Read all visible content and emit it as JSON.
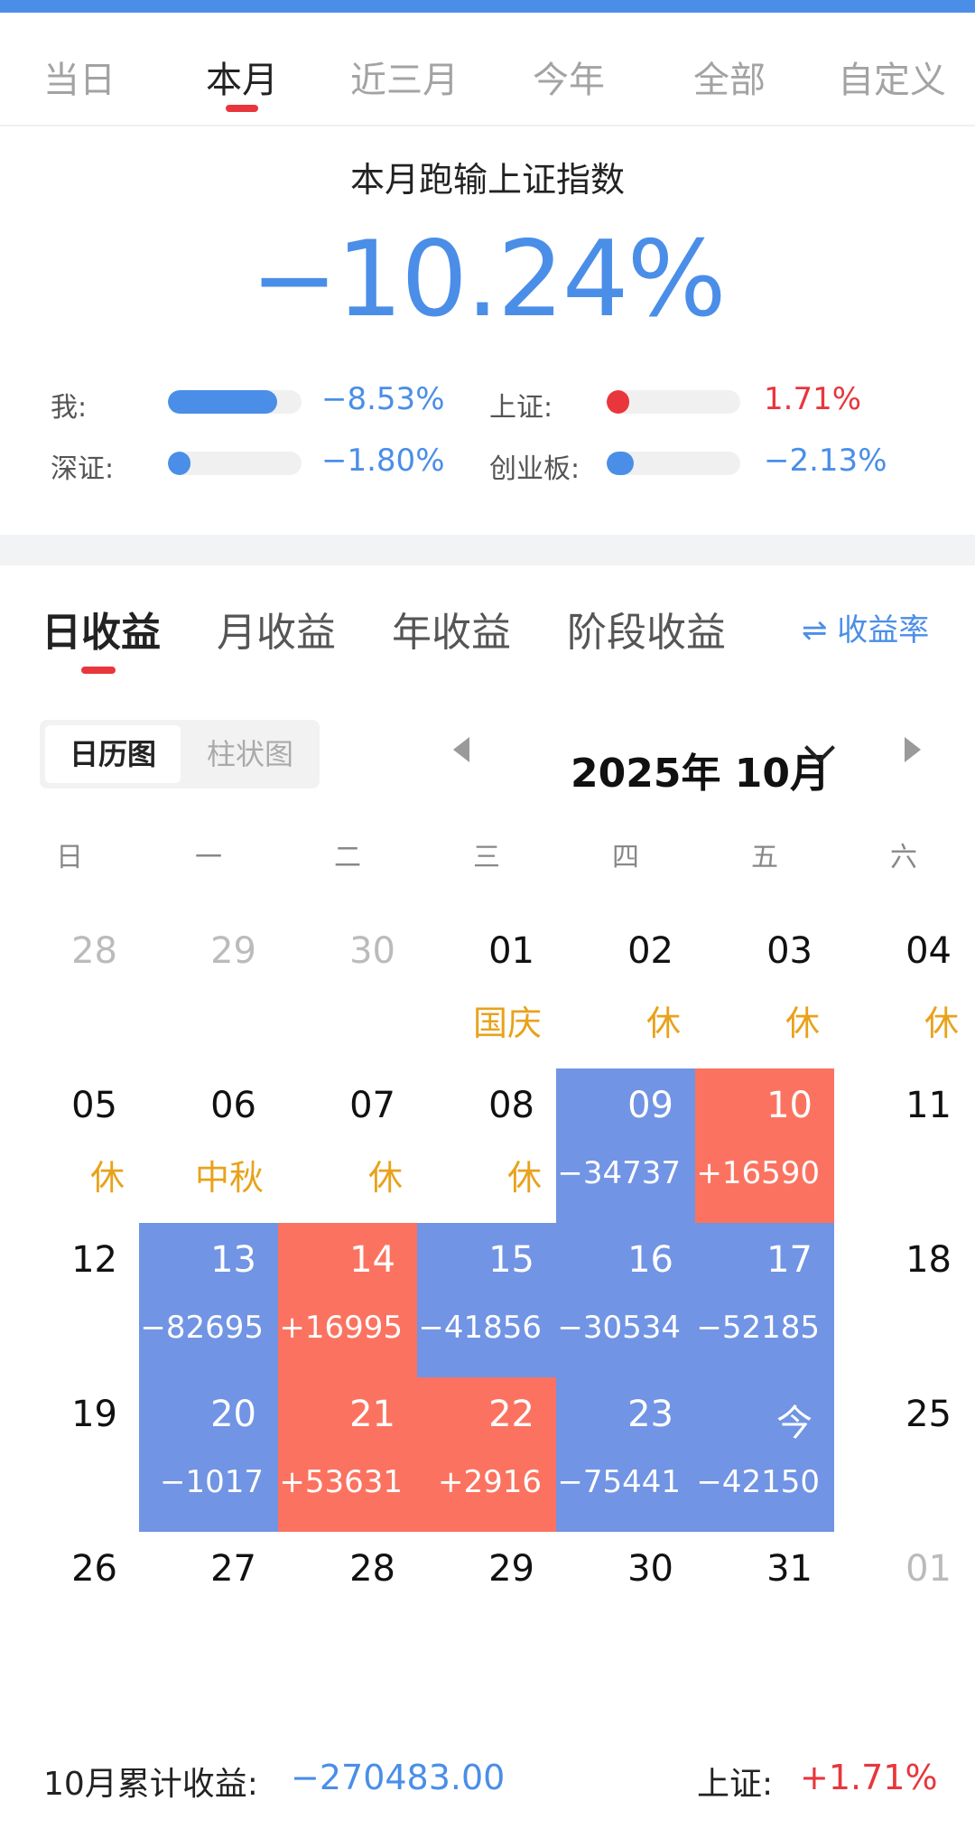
{
  "colors": {
    "accent_blue": "#4a8ee8",
    "accent_red": "#e8363c",
    "loss_cell": "#7194e4",
    "gain_cell": "#fb7360",
    "holiday": "#e8a21b"
  },
  "period_tabs": [
    {
      "label": "当日",
      "active": false
    },
    {
      "label": "本月",
      "active": true
    },
    {
      "label": "近三月",
      "active": false
    },
    {
      "label": "今年",
      "active": false
    },
    {
      "label": "全部",
      "active": false
    },
    {
      "label": "自定义",
      "active": false
    }
  ],
  "summary": {
    "title": "本月跑输上证指数",
    "value": "−10.24%",
    "comparisons": [
      {
        "label": "我:",
        "value": "−8.53%",
        "fill_fraction": 0.82,
        "color": "#4a8ee8"
      },
      {
        "label": "上证:",
        "value": "1.71%",
        "fill_fraction": 0.17,
        "color": "#e8363c"
      },
      {
        "label": "深证:",
        "value": "−1.80%",
        "fill_fraction": 0.17,
        "color": "#4a8ee8"
      },
      {
        "label": "创业板:",
        "value": "−2.13%",
        "fill_fraction": 0.2,
        "color": "#4a8ee8"
      }
    ]
  },
  "income_tabs": [
    {
      "label": "日收益",
      "active": true
    },
    {
      "label": "月收益",
      "active": false
    },
    {
      "label": "年收益",
      "active": false
    },
    {
      "label": "阶段收益",
      "active": false
    }
  ],
  "rate_toggle": {
    "icon": "swap-arrows-icon",
    "label": "⇌ 收益率"
  },
  "view_toggle": {
    "calendar_label": "日历图",
    "bar_label": "柱状图",
    "active": "calendar"
  },
  "month_nav": {
    "title": "2025年 10月"
  },
  "weekdays": [
    "日",
    "一",
    "二",
    "三",
    "四",
    "五",
    "六"
  ],
  "calendar_weeks": [
    [
      {
        "day": "28",
        "sub": "",
        "state": "other"
      },
      {
        "day": "29",
        "sub": "",
        "state": "other"
      },
      {
        "day": "30",
        "sub": "",
        "state": "other"
      },
      {
        "day": "01",
        "sub": "国庆",
        "state": "holiday"
      },
      {
        "day": "02",
        "sub": "休",
        "state": "holiday"
      },
      {
        "day": "03",
        "sub": "休",
        "state": "holiday"
      },
      {
        "day": "04",
        "sub": "休",
        "state": "holiday"
      }
    ],
    [
      {
        "day": "05",
        "sub": "休",
        "state": "holiday"
      },
      {
        "day": "06",
        "sub": "中秋",
        "state": "holiday"
      },
      {
        "day": "07",
        "sub": "休",
        "state": "holiday"
      },
      {
        "day": "08",
        "sub": "休",
        "state": "holiday"
      },
      {
        "day": "09",
        "sub": "−34737",
        "state": "neg"
      },
      {
        "day": "10",
        "sub": "+16590",
        "state": "pos"
      },
      {
        "day": "11",
        "sub": "",
        "state": "normal"
      }
    ],
    [
      {
        "day": "12",
        "sub": "",
        "state": "normal"
      },
      {
        "day": "13",
        "sub": "−82695",
        "state": "neg"
      },
      {
        "day": "14",
        "sub": "+16995",
        "state": "pos"
      },
      {
        "day": "15",
        "sub": "−41856",
        "state": "neg"
      },
      {
        "day": "16",
        "sub": "−30534",
        "state": "neg"
      },
      {
        "day": "17",
        "sub": "−52185",
        "state": "neg"
      },
      {
        "day": "18",
        "sub": "",
        "state": "normal"
      }
    ],
    [
      {
        "day": "19",
        "sub": "",
        "state": "normal"
      },
      {
        "day": "20",
        "sub": "−1017",
        "state": "neg"
      },
      {
        "day": "21",
        "sub": "+53631",
        "state": "pos"
      },
      {
        "day": "22",
        "sub": "+2916",
        "state": "pos"
      },
      {
        "day": "23",
        "sub": "−75441",
        "state": "neg"
      },
      {
        "day": "今",
        "sub": "−42150",
        "state": "neg"
      },
      {
        "day": "25",
        "sub": "",
        "state": "normal"
      }
    ],
    [
      {
        "day": "26",
        "sub": "",
        "state": "normal"
      },
      {
        "day": "27",
        "sub": "",
        "state": "normal"
      },
      {
        "day": "28",
        "sub": "",
        "state": "normal"
      },
      {
        "day": "29",
        "sub": "",
        "state": "normal"
      },
      {
        "day": "30",
        "sub": "",
        "state": "normal"
      },
      {
        "day": "31",
        "sub": "",
        "state": "normal"
      },
      {
        "day": "01",
        "sub": "",
        "state": "other"
      }
    ]
  ],
  "footer": {
    "label": "10月累计收益:",
    "value": "−270483.00",
    "index_label": "上证:",
    "index_value": "+1.71%"
  }
}
